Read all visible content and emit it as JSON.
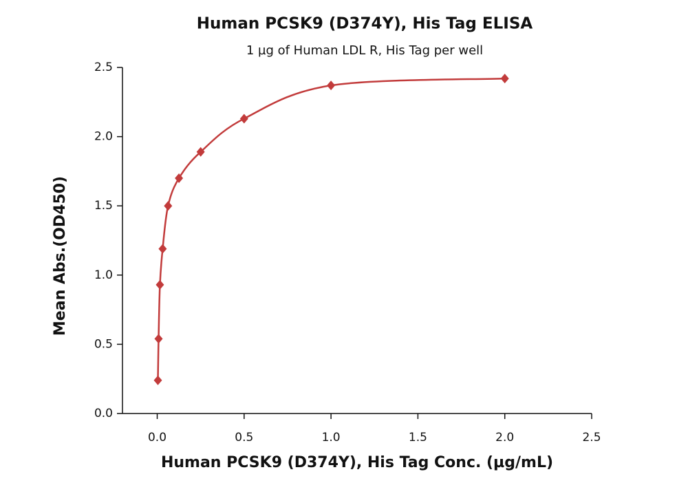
{
  "chart_data": {
    "type": "scatter",
    "title": "Human PCSK9 (D374Y), His Tag ELISA",
    "subtitle": "1 µg of Human LDL R, His Tag per well",
    "x_label": "Human PCSK9 (D374Y), His Tag Conc. (µg/mL)",
    "y_label": "Mean Abs.(OD450)",
    "smooth_line": true,
    "series": [
      {
        "color": "#c23b3b",
        "x": [
          0.0039,
          0.0078,
          0.0156,
          0.03125,
          0.0625,
          0.125,
          0.25,
          0.5,
          1,
          2
        ],
        "values": [
          0.24,
          0.54,
          0.93,
          1.19,
          1.5,
          1.7,
          1.89,
          2.13,
          2.37,
          2.42
        ]
      }
    ],
    "xlim": [
      -0.2,
      2.5
    ],
    "ylim": [
      0,
      2.5
    ],
    "xticks": [
      {
        "value": 0,
        "label": "0.0"
      },
      {
        "value": 0.5,
        "label": "0.5"
      },
      {
        "value": 1,
        "label": "1.0"
      },
      {
        "value": 1.5,
        "label": "1.5"
      },
      {
        "value": 2,
        "label": "2.0"
      },
      {
        "value": 2.5,
        "label": "2.5"
      }
    ],
    "yticks": [
      {
        "value": 0,
        "label": "0.0"
      },
      {
        "value": 0.5,
        "label": "0.5"
      },
      {
        "value": 1,
        "label": "1.0"
      },
      {
        "value": 1.5,
        "label": "1.5"
      },
      {
        "value": 2,
        "label": "2.0"
      },
      {
        "value": 2.5,
        "label": "2.5"
      }
    ]
  }
}
